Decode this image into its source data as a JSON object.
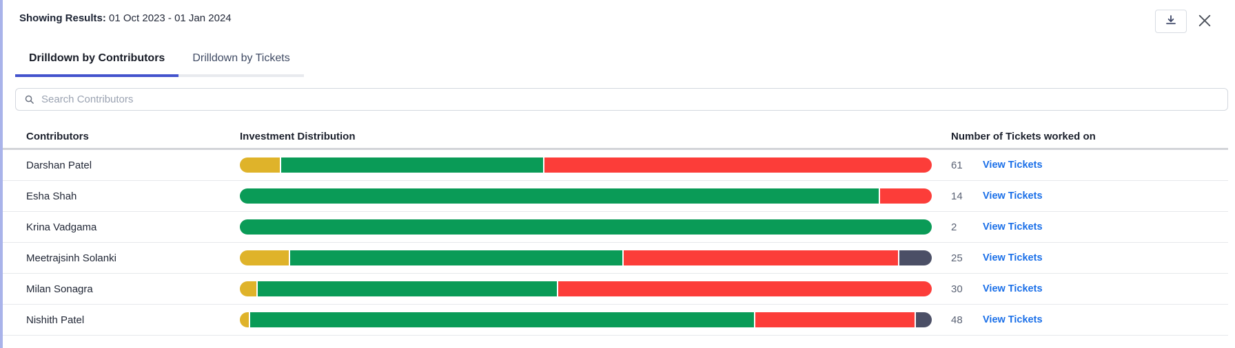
{
  "header": {
    "showing_results_label": "Showing Results:",
    "date_range": "01 Oct 2023 - 01 Jan 2024"
  },
  "tabs": [
    {
      "label": "Drilldown by Contributors",
      "active": true
    },
    {
      "label": "Drilldown by Tickets",
      "active": false
    }
  ],
  "search": {
    "placeholder": "Search Contributors",
    "value": ""
  },
  "table": {
    "columns": [
      "Contributors",
      "Investment Distribution",
      "Number of Tickets worked on"
    ],
    "view_tickets_label": "View Tickets",
    "rows": [
      {
        "contributor": "Darshan Patel",
        "tickets": "61",
        "segments": [
          {
            "status": "yellow",
            "pct": 6.0
          },
          {
            "status": "green",
            "pct": 38.0
          },
          {
            "status": "red",
            "pct": 56.0
          }
        ]
      },
      {
        "contributor": "Esha Shah",
        "tickets": "14",
        "segments": [
          {
            "status": "green",
            "pct": 92.5
          },
          {
            "status": "red",
            "pct": 7.5
          }
        ]
      },
      {
        "contributor": "Krina Vadgama",
        "tickets": "2",
        "segments": [
          {
            "status": "green",
            "pct": 100
          }
        ]
      },
      {
        "contributor": "Meetrajsinh Solanki",
        "tickets": "25",
        "segments": [
          {
            "status": "yellow",
            "pct": 7.3
          },
          {
            "status": "green",
            "pct": 48.2
          },
          {
            "status": "red",
            "pct": 39.8
          },
          {
            "status": "slate",
            "pct": 4.7
          }
        ]
      },
      {
        "contributor": "Milan Sonagra",
        "tickets": "30",
        "segments": [
          {
            "status": "yellow",
            "pct": 2.6
          },
          {
            "status": "green",
            "pct": 43.4
          },
          {
            "status": "red",
            "pct": 54.0
          }
        ]
      },
      {
        "contributor": "Nishith Patel",
        "tickets": "48",
        "segments": [
          {
            "status": "yellow",
            "pct": 1.5
          },
          {
            "status": "green",
            "pct": 73.0
          },
          {
            "status": "red",
            "pct": 23.2
          },
          {
            "status": "slate",
            "pct": 2.3
          }
        ]
      }
    ]
  },
  "colors": {
    "yellow": "#dfb32a",
    "green": "#0a9b57",
    "red": "#fc3d39",
    "slate": "#4b4f66",
    "link_blue": "#1a6fe8",
    "tab_active_underline": "#4353cd",
    "left_accent": "#a9b3ea"
  }
}
